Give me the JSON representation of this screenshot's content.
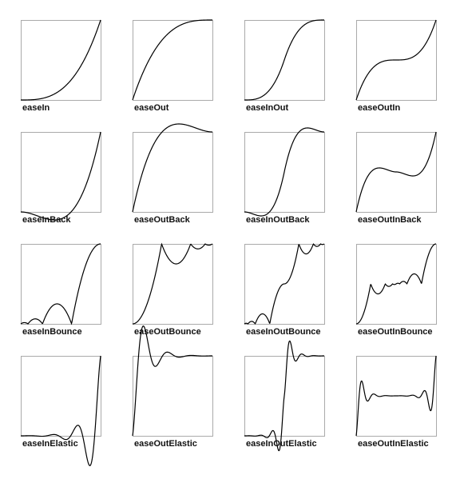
{
  "colors": {
    "background": "#ffffff",
    "frame": "#aaaaaa",
    "curve": "#000000",
    "label": "#111111"
  },
  "chart_data": {
    "type": "line",
    "title": "",
    "xlim": [
      0,
      1
    ],
    "ylim": [
      0,
      1
    ],
    "grid": false,
    "panels": [
      {
        "label": "easeIn",
        "easing": "easeIn"
      },
      {
        "label": "easeOut",
        "easing": "easeOut"
      },
      {
        "label": "easeInOut",
        "easing": "easeInOut"
      },
      {
        "label": "easeOutIn",
        "easing": "easeOutIn"
      },
      {
        "label": "easeInBack",
        "easing": "easeInBack"
      },
      {
        "label": "easeOutBack",
        "easing": "easeOutBack"
      },
      {
        "label": "easeInOutBack",
        "easing": "easeInOutBack"
      },
      {
        "label": "easeOutInBack",
        "easing": "easeOutInBack"
      },
      {
        "label": "easeInBounce",
        "easing": "easeInBounce"
      },
      {
        "label": "easeOutBounce",
        "easing": "easeOutBounce"
      },
      {
        "label": "easeInOutBounce",
        "easing": "easeInOutBounce"
      },
      {
        "label": "easeOutInBounce",
        "easing": "easeOutInBounce"
      },
      {
        "label": "easeInElastic",
        "easing": "easeInElastic"
      },
      {
        "label": "easeOutElastic",
        "easing": "easeOutElastic"
      },
      {
        "label": "easeInOutElastic",
        "easing": "easeInOutElastic"
      },
      {
        "label": "easeOutInElastic",
        "easing": "easeOutInElastic"
      }
    ]
  }
}
